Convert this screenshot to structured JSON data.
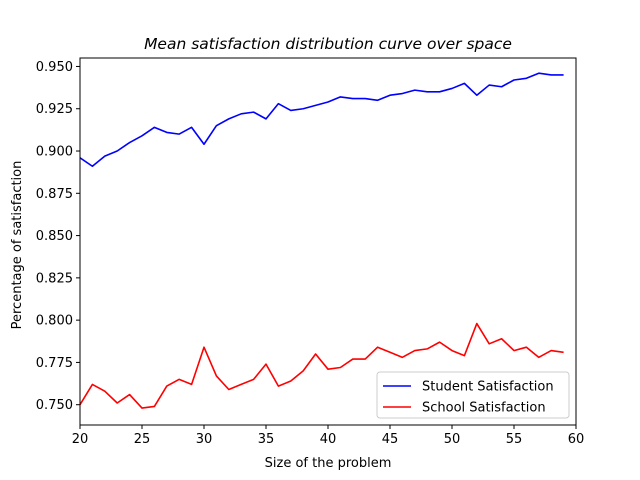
{
  "chart_data": {
    "type": "line",
    "title": "Mean satisfaction distribution curve over space",
    "xlabel": "Size of the problem",
    "ylabel": "Percentage of satisfaction",
    "xlim": [
      20,
      60
    ],
    "ylim": [
      0.738,
      0.955
    ],
    "xticks": [
      20,
      25,
      30,
      35,
      40,
      45,
      50,
      55,
      60
    ],
    "xtick_labels": [
      "20",
      "25",
      "30",
      "35",
      "40",
      "45",
      "50",
      "55",
      "60"
    ],
    "yticks": [
      0.75,
      0.775,
      0.8,
      0.825,
      0.85,
      0.875,
      0.9,
      0.925,
      0.95
    ],
    "ytick_labels": [
      "0.750",
      "0.775",
      "0.800",
      "0.825",
      "0.850",
      "0.875",
      "0.900",
      "0.925",
      "0.950"
    ],
    "grid": false,
    "legend_position": "lower-right",
    "x": [
      20,
      21,
      22,
      23,
      24,
      25,
      26,
      27,
      28,
      29,
      30,
      31,
      32,
      33,
      34,
      35,
      36,
      37,
      38,
      39,
      40,
      41,
      42,
      43,
      44,
      45,
      46,
      47,
      48,
      49,
      50,
      51,
      52,
      53,
      54,
      55,
      56,
      57,
      58,
      59
    ],
    "series": [
      {
        "name": "Student Satisfaction",
        "color": "#0000ff",
        "values": [
          0.896,
          0.891,
          0.897,
          0.9,
          0.905,
          0.909,
          0.914,
          0.911,
          0.91,
          0.914,
          0.904,
          0.915,
          0.919,
          0.922,
          0.923,
          0.919,
          0.928,
          0.924,
          0.925,
          0.927,
          0.929,
          0.932,
          0.931,
          0.931,
          0.93,
          0.933,
          0.934,
          0.936,
          0.935,
          0.935,
          0.937,
          0.94,
          0.933,
          0.939,
          0.938,
          0.942,
          0.943,
          0.946,
          0.945,
          0.945
        ]
      },
      {
        "name": "School Satisfaction",
        "color": "#ff0000",
        "values": [
          0.75,
          0.762,
          0.758,
          0.751,
          0.756,
          0.748,
          0.749,
          0.761,
          0.765,
          0.762,
          0.784,
          0.767,
          0.759,
          0.762,
          0.765,
          0.774,
          0.761,
          0.764,
          0.77,
          0.78,
          0.771,
          0.772,
          0.777,
          0.777,
          0.784,
          0.781,
          0.778,
          0.782,
          0.783,
          0.787,
          0.782,
          0.779,
          0.798,
          0.786,
          0.789,
          0.782,
          0.784,
          0.778,
          0.782,
          0.781
        ]
      }
    ]
  }
}
